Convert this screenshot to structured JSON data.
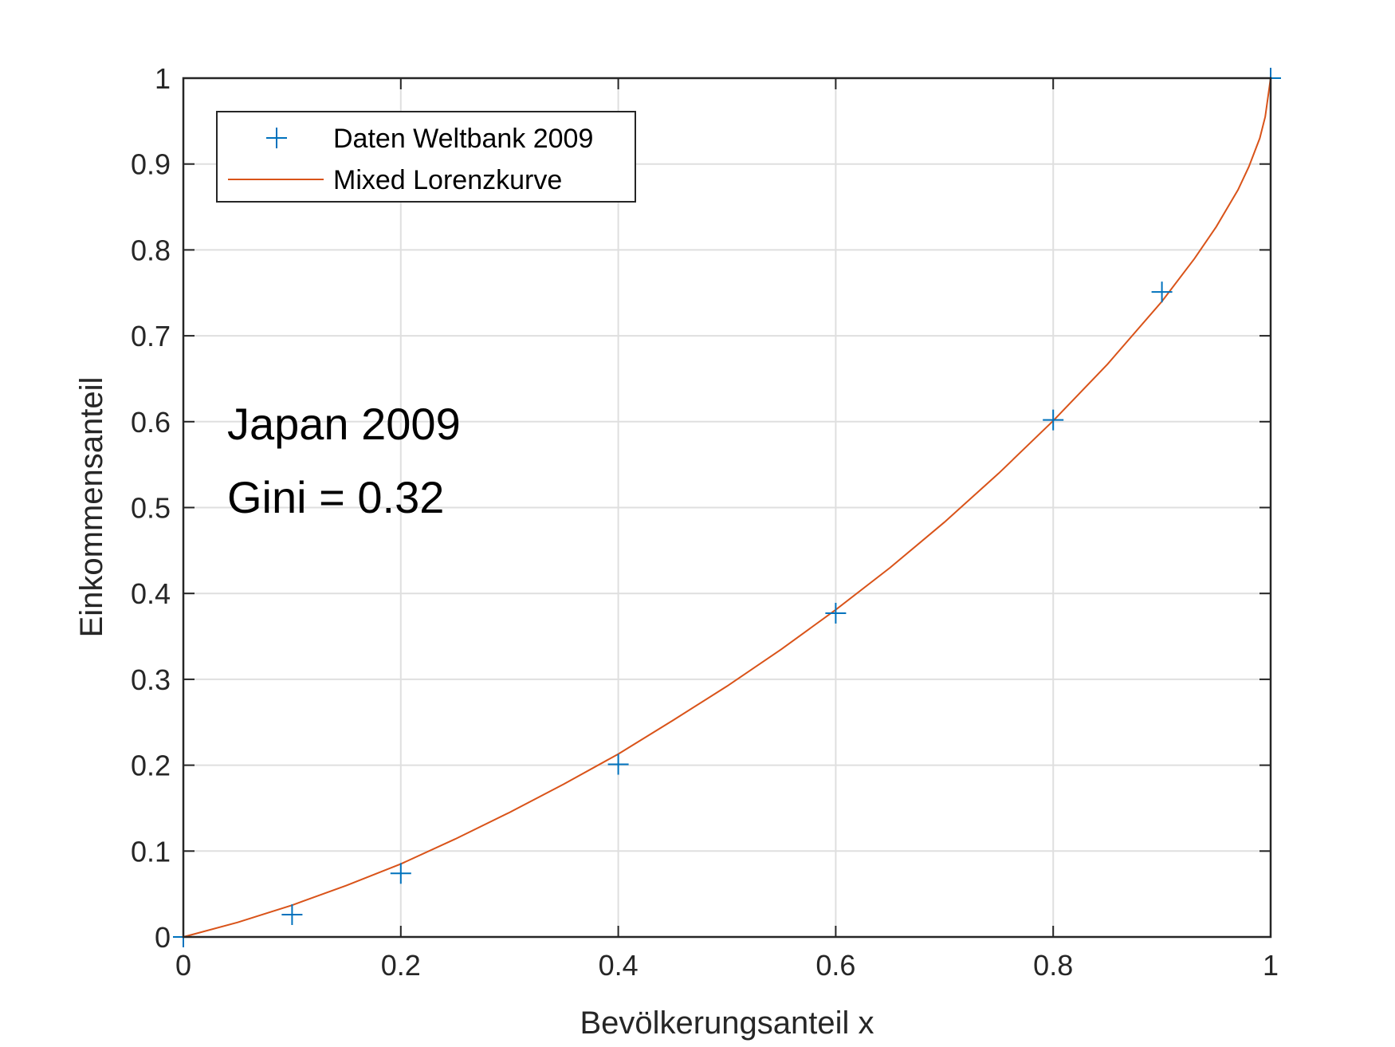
{
  "chart_data": {
    "type": "line",
    "xlabel": "Bevölkerungsanteil x",
    "ylabel": "Einkommensanteil",
    "xlim": [
      0,
      1
    ],
    "ylim": [
      0,
      1
    ],
    "grid": true,
    "legend_position": "top-left",
    "x_ticks": [
      "0",
      "0.2",
      "0.4",
      "0.6",
      "0.8",
      "1"
    ],
    "x_tick_values": [
      0,
      0.2,
      0.4,
      0.6,
      0.8,
      1
    ],
    "y_ticks": [
      "0",
      "0.1",
      "0.2",
      "0.3",
      "0.4",
      "0.5",
      "0.6",
      "0.7",
      "0.8",
      "0.9",
      "1"
    ],
    "y_tick_values": [
      0,
      0.1,
      0.2,
      0.3,
      0.4,
      0.5,
      0.6,
      0.7,
      0.8,
      0.9,
      1
    ],
    "annotations": [
      "Japan 2009",
      "Gini = 0.32"
    ],
    "series": [
      {
        "name": "Daten Weltbank 2009",
        "kind": "markers",
        "marker": "plus",
        "color": "#0072BD",
        "x": [
          0,
          0.1,
          0.2,
          0.4,
          0.6,
          0.8,
          0.9,
          1
        ],
        "y": [
          0,
          0.026,
          0.074,
          0.201,
          0.377,
          0.602,
          0.751,
          1
        ]
      },
      {
        "name": "Mixed Lorenzkurve",
        "kind": "line",
        "color": "#D95319",
        "x": [
          0,
          0.05,
          0.1,
          0.15,
          0.2,
          0.25,
          0.3,
          0.35,
          0.4,
          0.45,
          0.5,
          0.55,
          0.6,
          0.65,
          0.7,
          0.75,
          0.8,
          0.85,
          0.9,
          0.93,
          0.95,
          0.97,
          0.98,
          0.99,
          0.995,
          1
        ],
        "y": [
          0,
          0.017,
          0.037,
          0.06,
          0.085,
          0.114,
          0.145,
          0.178,
          0.213,
          0.252,
          0.292,
          0.335,
          0.381,
          0.43,
          0.483,
          0.54,
          0.601,
          0.667,
          0.74,
          0.79,
          0.827,
          0.87,
          0.897,
          0.93,
          0.955,
          1
        ]
      }
    ]
  }
}
